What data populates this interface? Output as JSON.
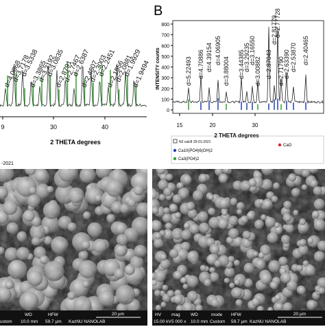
{
  "left_xrd": {
    "x_ticks": [
      "9",
      "30",
      "40"
    ],
    "x_label": "2 THETA degrees",
    "note": "-2021",
    "peaks": [
      "d=4.0668",
      "d=3.7178",
      "d=3.5338",
      "d=3.3865",
      "d=3.2192",
      "d=3.0835",
      "d=2.8791",
      "d=2.7467",
      "d=2.6387",
      "d=2.4807",
      "d=2.3003",
      "d=2.2451",
      "d=2.1556",
      "d=2.0881",
      "d=1.9929",
      "d=1.9494"
    ]
  },
  "right_xrd": {
    "label": "B",
    "y_label": "INTENSITY counts",
    "y_ticks": [
      "0",
      "100",
      "200",
      "300",
      "400",
      "500",
      "600",
      "700",
      "800"
    ],
    "x_ticks": [
      "15",
      "20",
      "30"
    ],
    "x_label": "2 THETA degrees",
    "legend": {
      "sample": "N2 calc8 25-01-2021",
      "items": [
        "Ca10(PO4)6(OH)2",
        "Ca3(PO4)2",
        "CaO"
      ]
    },
    "peaks": [
      "d=5.22493",
      "d=4.70886",
      "d=4.39154",
      "d=4.06905",
      "d=3.88004",
      "d=3.44385",
      "d=3.29235",
      "d=3.16550",
      "d=3.00882",
      "d=2.87043",
      "d=2.81779",
      "d=2.77728",
      "d=2.71790",
      "d=2.63390",
      "d=2.53870",
      "d=2.40465"
    ]
  },
  "left_sem": {
    "headers": [
      "WD",
      "HFW"
    ],
    "values": [
      "ustom",
      "10.0 mm",
      "59.7 µm",
      "KazNU NANOLAB"
    ],
    "scale": "20 µm"
  },
  "right_sem": {
    "headers": [
      "HV",
      "mag",
      "WD",
      "mode",
      "HFW"
    ],
    "values": [
      "15.00 kV",
      "5 000 x",
      "10.0 mm",
      "Custom",
      "59.7 µm",
      "KazNU NANOLAB"
    ],
    "scale": "20 µm"
  }
}
